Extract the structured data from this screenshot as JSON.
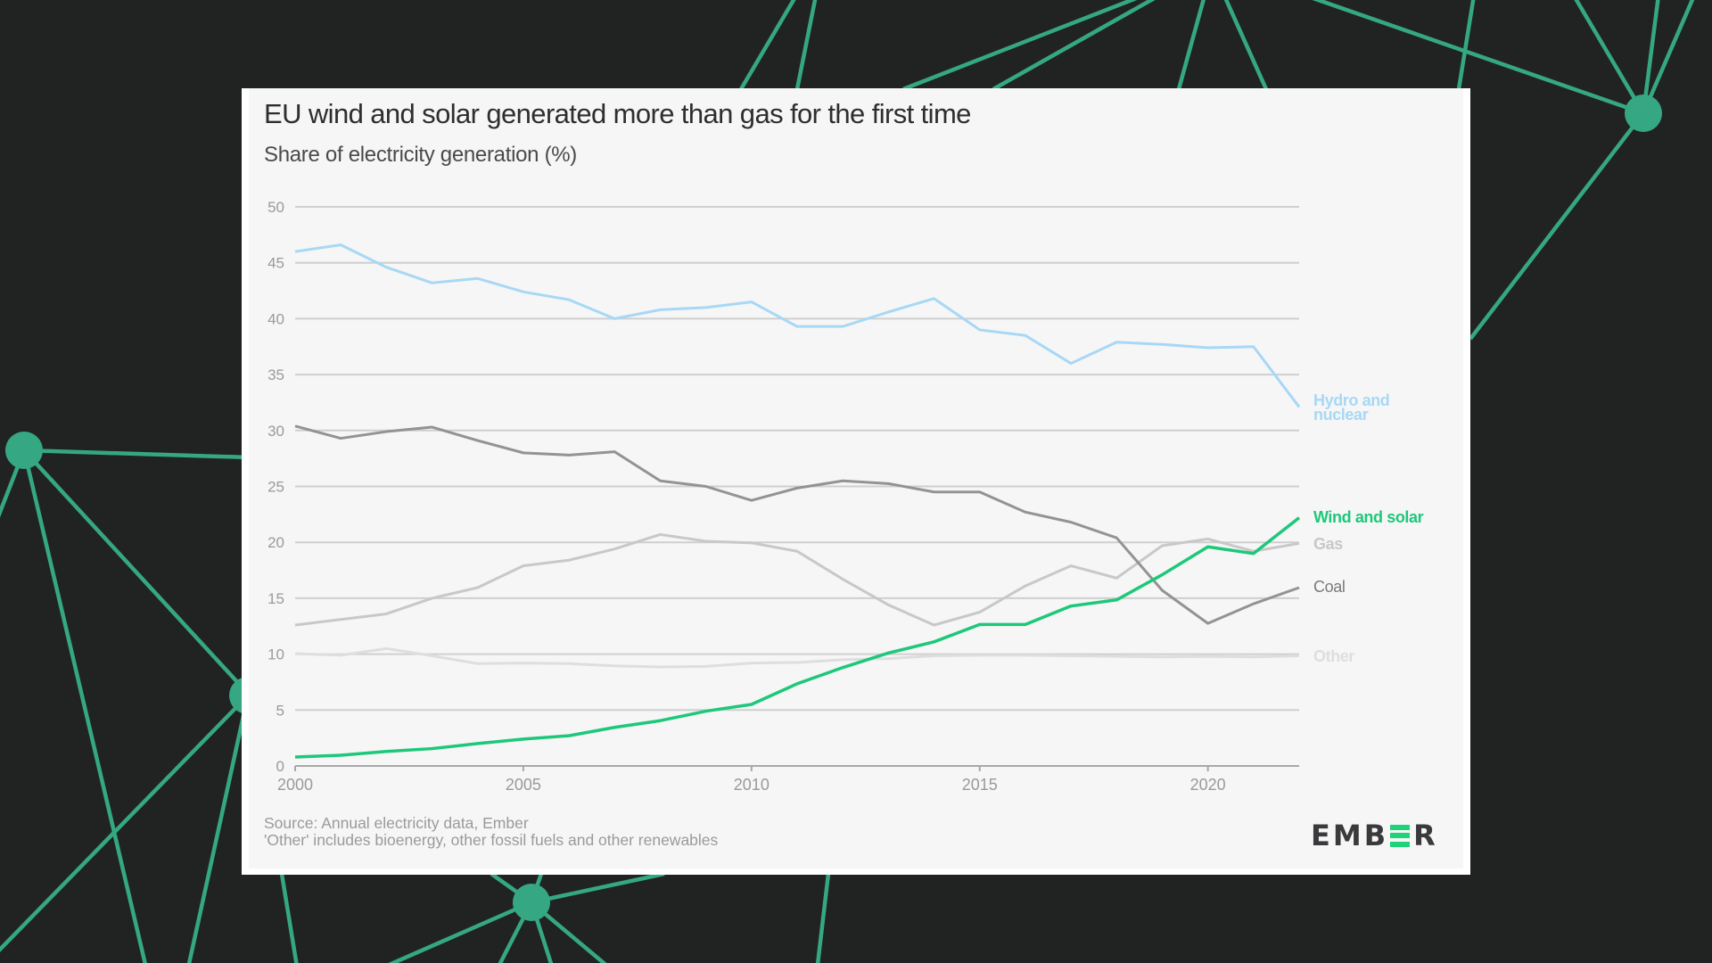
{
  "background": {
    "color": "#212322",
    "network_color": "#35a883",
    "network_icon": "network-graph-decoration"
  },
  "card": {
    "title": "EU wind and solar generated more than gas for the first time",
    "subtitle": "Share of electricity generation (%)",
    "footnote_source": "Source: Annual electricity data, Ember",
    "footnote_other": "'Other' includes bioenergy, other fossil fuels and other renewables",
    "logo": {
      "text_before": "EMB",
      "text_after": "R",
      "accent_color": "#1fd37a",
      "icon": "ember-logo"
    }
  },
  "chart_data": {
    "type": "line",
    "title": "EU wind and solar generated more than gas for the first time",
    "subtitle": "Share of electricity generation (%)",
    "xlabel": "",
    "ylabel": "Share of electricity generation (%)",
    "x": [
      2000,
      2001,
      2002,
      2003,
      2004,
      2005,
      2006,
      2007,
      2008,
      2009,
      2010,
      2011,
      2012,
      2013,
      2014,
      2015,
      2016,
      2017,
      2018,
      2019,
      2020,
      2021,
      2022
    ],
    "xlim": [
      2000,
      2022
    ],
    "ylim": [
      0,
      50
    ],
    "yticks": [
      0,
      5,
      10,
      15,
      20,
      25,
      30,
      35,
      40,
      45,
      50
    ],
    "xticks": [
      2000,
      2005,
      2010,
      2015,
      2020
    ],
    "grid": true,
    "legend": "right (direct line labels)",
    "series": [
      {
        "name": "Hydro and nuclear",
        "label_lines": [
          "Hydro and",
          "nuclear"
        ],
        "color": "#a7d8f5",
        "values": [
          46.0,
          46.6,
          44.6,
          43.2,
          43.6,
          42.4,
          41.7,
          40.0,
          40.8,
          41.0,
          41.5,
          39.3,
          39.3,
          40.6,
          41.8,
          39.0,
          38.5,
          36.0,
          37.9,
          37.7,
          37.4,
          37.5,
          32.1
        ]
      },
      {
        "name": "Wind and solar",
        "label_lines": [
          "Wind and solar"
        ],
        "color": "#1dc87a",
        "values": [
          0.8,
          0.96,
          1.3,
          1.55,
          2.0,
          2.4,
          2.7,
          3.45,
          4.05,
          4.9,
          5.5,
          7.35,
          8.8,
          10.1,
          11.1,
          12.65,
          12.65,
          14.3,
          14.85,
          17.1,
          19.6,
          19.0,
          22.2
        ]
      },
      {
        "name": "Gas",
        "label_lines": [
          "Gas"
        ],
        "color": "#c8c8c8",
        "values": [
          12.6,
          13.1,
          13.6,
          15.0,
          15.95,
          17.9,
          18.4,
          19.4,
          20.7,
          20.1,
          19.95,
          19.2,
          16.7,
          14.4,
          12.6,
          13.75,
          16.1,
          17.9,
          16.8,
          19.7,
          20.3,
          19.2,
          19.9
        ]
      },
      {
        "name": "Coal",
        "label_lines": [
          "Coal"
        ],
        "color": "#939393",
        "label_color": "#7a7a7a",
        "values": [
          30.4,
          29.3,
          29.9,
          30.3,
          29.1,
          28.0,
          27.8,
          28.1,
          25.5,
          25.0,
          23.75,
          24.85,
          25.5,
          25.25,
          24.5,
          24.5,
          22.7,
          21.8,
          20.4,
          15.7,
          12.75,
          14.5,
          15.95
        ]
      },
      {
        "name": "Other",
        "label_lines": [
          "Other"
        ],
        "color": "#dedede",
        "values": [
          10.05,
          9.9,
          10.5,
          9.85,
          9.15,
          9.2,
          9.15,
          8.95,
          8.85,
          8.9,
          9.2,
          9.25,
          9.5,
          9.6,
          9.85,
          9.9,
          9.9,
          9.85,
          9.8,
          9.75,
          9.8,
          9.75,
          9.85
        ]
      }
    ]
  }
}
